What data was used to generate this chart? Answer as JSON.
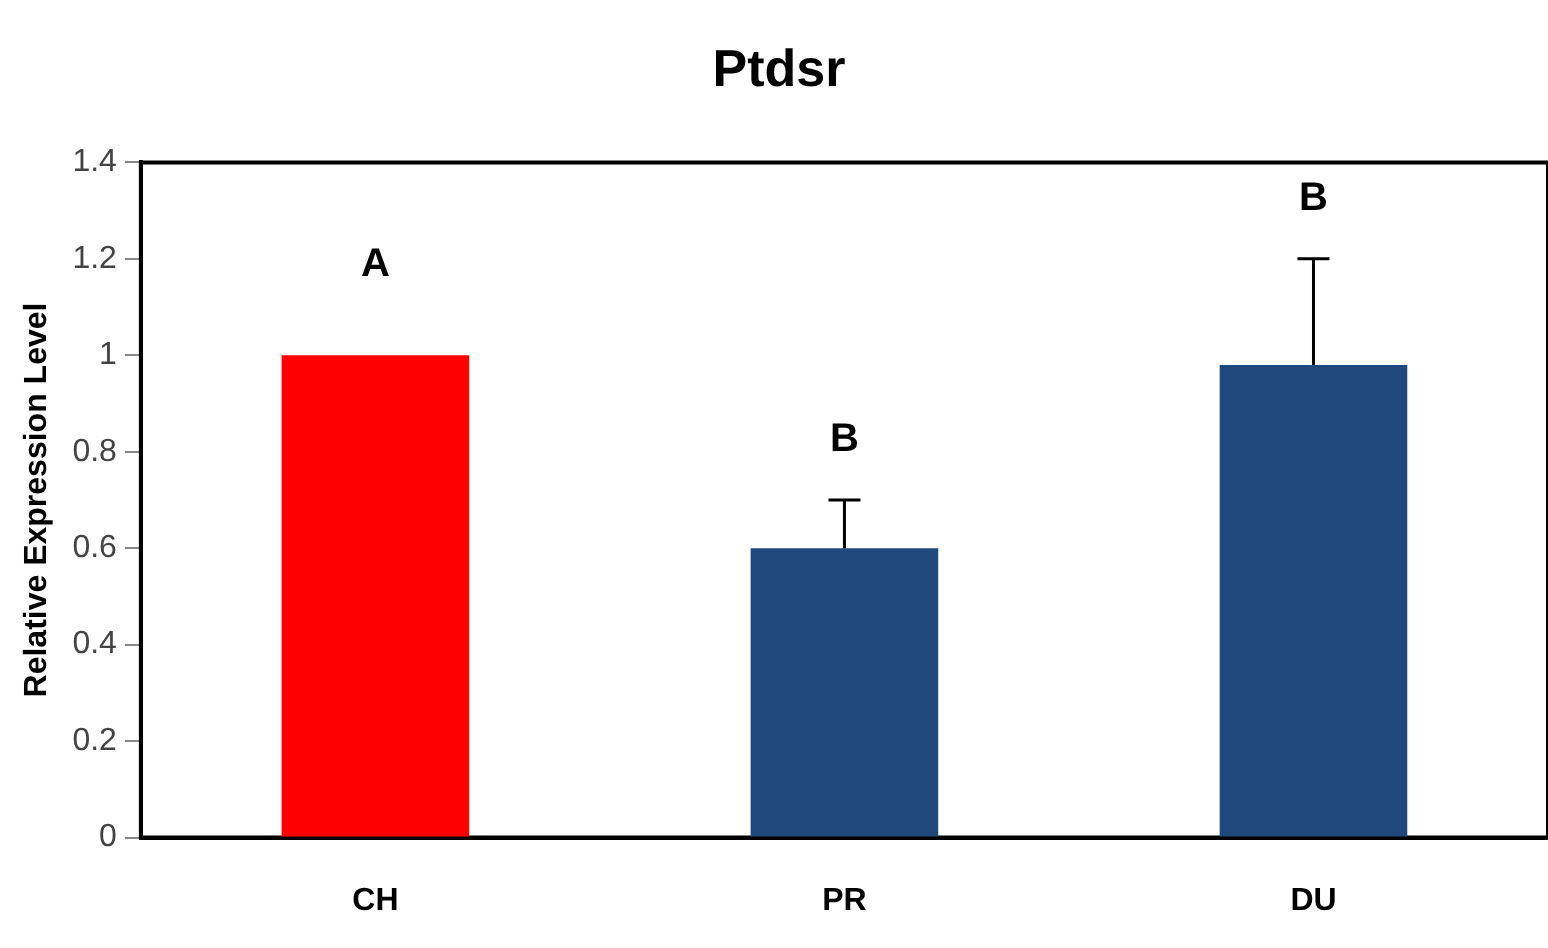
{
  "chart_data": {
    "type": "bar",
    "title": "Ptdsr",
    "ylabel": "Relative Expression Level",
    "categories": [
      "CH",
      "PR",
      "DU"
    ],
    "values": [
      1.0,
      0.6,
      0.98
    ],
    "colors": [
      "#ff0000",
      "#1f497d",
      "#1f497d"
    ],
    "errors": [
      null,
      [
        0.6,
        0.7
      ],
      [
        0.98,
        1.2
      ]
    ],
    "ylim": [
      0,
      1.4
    ],
    "yticks": [
      0,
      0.2,
      0.4,
      0.6,
      0.8,
      1,
      1.2,
      1.4
    ],
    "grid": false,
    "legend": false,
    "annotations": [
      "A",
      "B",
      "B"
    ]
  }
}
